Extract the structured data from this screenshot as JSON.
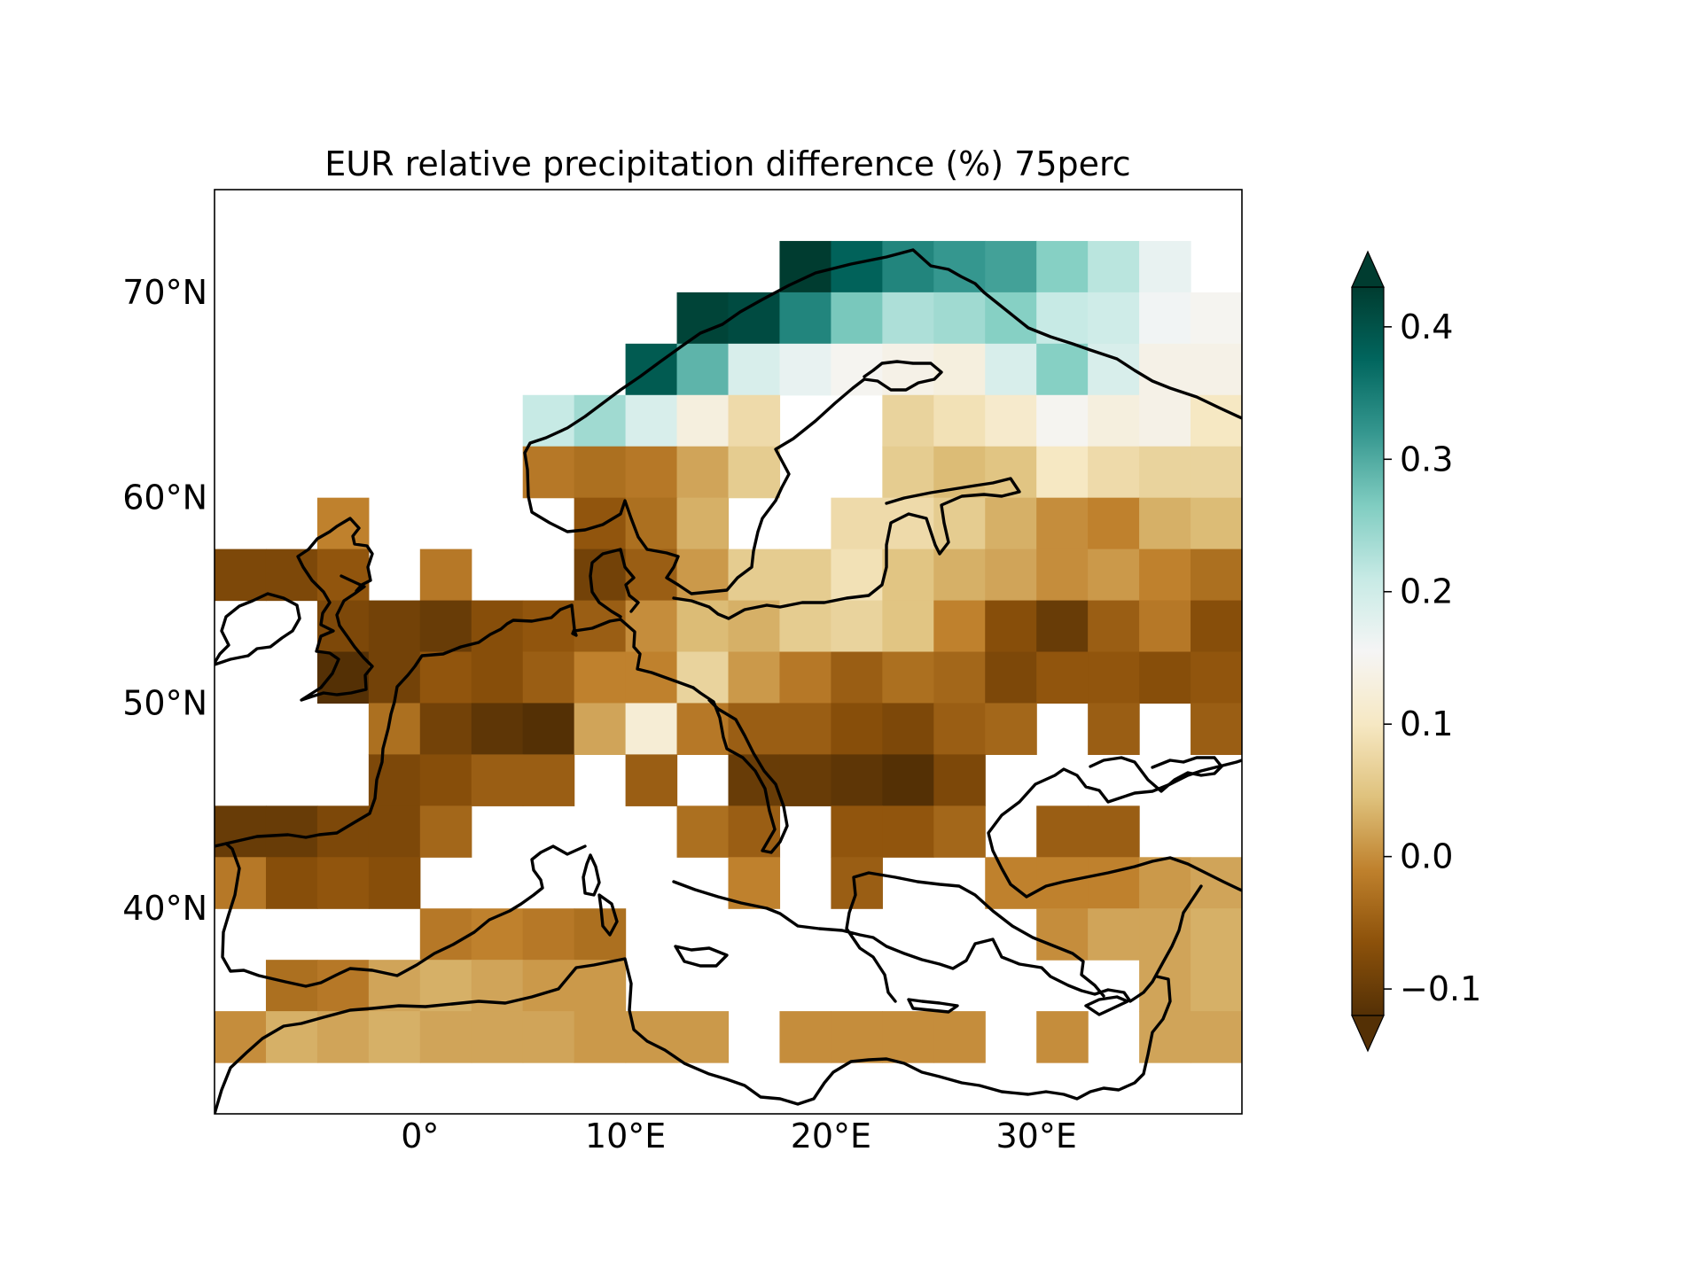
{
  "chart_data": {
    "type": "heatmap",
    "title": "EUR relative precipitation difference (%) 75perc",
    "xlim": [
      -10,
      40
    ],
    "ylim": [
      30,
      75
    ],
    "cell_size_deg": 2.5,
    "x_ticks": [
      {
        "value": 0,
        "label": "0°"
      },
      {
        "value": 10,
        "label": "10°E"
      },
      {
        "value": 20,
        "label": "20°E"
      },
      {
        "value": 30,
        "label": "30°E"
      }
    ],
    "y_ticks": [
      {
        "value": 40,
        "label": "40°N"
      },
      {
        "value": 50,
        "label": "50°N"
      },
      {
        "value": 60,
        "label": "60°N"
      },
      {
        "value": 70,
        "label": "70°N"
      }
    ],
    "colorbar": {
      "colormap": "BrBG",
      "vmin": -0.12,
      "vmax": 0.43,
      "extend": "both",
      "ticks": [
        {
          "value": -0.1,
          "label": "−0.1"
        },
        {
          "value": 0.0,
          "label": "0.0"
        },
        {
          "value": 0.1,
          "label": "0.1"
        },
        {
          "value": 0.2,
          "label": "0.2"
        },
        {
          "value": 0.3,
          "label": "0.3"
        },
        {
          "value": 0.4,
          "label": "0.4"
        }
      ]
    },
    "grid": false,
    "lon_edges_start": -10,
    "lat_edges_start": 72.5,
    "rows": [
      [
        null,
        null,
        null,
        null,
        null,
        null,
        null,
        null,
        null,
        null,
        null,
        0.43,
        0.38,
        0.34,
        0.32,
        0.31,
        0.26,
        0.22,
        0.17,
        null
      ],
      [
        null,
        null,
        null,
        null,
        null,
        null,
        null,
        null,
        null,
        0.42,
        0.41,
        0.34,
        0.27,
        0.23,
        0.24,
        0.26,
        0.21,
        0.2,
        0.16,
        0.15
      ],
      [
        null,
        null,
        null,
        null,
        null,
        null,
        null,
        null,
        0.39,
        0.29,
        0.19,
        0.17,
        0.15,
        0.14,
        0.13,
        0.19,
        0.26,
        0.19,
        0.14,
        0.14
      ],
      [
        null,
        null,
        null,
        null,
        null,
        null,
        0.21,
        0.24,
        0.19,
        0.13,
        0.08,
        null,
        null,
        0.07,
        0.09,
        0.11,
        0.15,
        0.13,
        0.14,
        0.1
      ],
      [
        null,
        null,
        null,
        null,
        null,
        null,
        -0.02,
        -0.03,
        -0.02,
        0.02,
        0.06,
        null,
        null,
        0.06,
        0.04,
        0.05,
        0.1,
        0.08,
        0.07,
        0.07
      ],
      [
        null,
        null,
        -0.01,
        null,
        null,
        null,
        null,
        -0.06,
        -0.03,
        0.03,
        null,
        null,
        0.08,
        0.08,
        0.06,
        0.03,
        0.0,
        -0.01,
        0.03,
        0.04
      ],
      [
        -0.08,
        -0.08,
        -0.06,
        null,
        -0.02,
        null,
        null,
        -0.09,
        -0.05,
        0.01,
        0.06,
        0.06,
        0.09,
        0.05,
        0.03,
        0.02,
        0.0,
        0.01,
        -0.01,
        -0.03
      ],
      [
        null,
        null,
        -0.08,
        -0.09,
        -0.1,
        -0.07,
        -0.06,
        -0.05,
        0.0,
        0.04,
        0.03,
        0.06,
        0.07,
        0.05,
        -0.01,
        -0.07,
        -0.1,
        -0.05,
        -0.02,
        -0.07
      ],
      [
        null,
        null,
        -0.12,
        -0.09,
        -0.06,
        -0.07,
        -0.05,
        -0.01,
        -0.01,
        0.07,
        0.01,
        -0.02,
        -0.05,
        -0.03,
        -0.04,
        -0.08,
        -0.06,
        -0.06,
        -0.07,
        -0.06
      ],
      [
        null,
        null,
        null,
        -0.03,
        -0.09,
        -0.11,
        -0.12,
        0.02,
        0.12,
        -0.02,
        -0.05,
        -0.05,
        -0.07,
        -0.08,
        -0.05,
        -0.04,
        null,
        -0.05,
        null,
        -0.05
      ],
      [
        null,
        null,
        null,
        -0.08,
        -0.07,
        -0.05,
        -0.05,
        null,
        -0.05,
        null,
        -0.1,
        -0.1,
        -0.11,
        -0.12,
        -0.08,
        null,
        null,
        null,
        null,
        null
      ],
      [
        -0.1,
        -0.1,
        -0.08,
        -0.08,
        -0.04,
        null,
        null,
        null,
        null,
        -0.03,
        -0.05,
        null,
        -0.06,
        -0.06,
        -0.04,
        null,
        -0.05,
        -0.05,
        null,
        null
      ],
      [
        -0.02,
        -0.07,
        -0.06,
        -0.07,
        null,
        null,
        null,
        null,
        null,
        null,
        -0.01,
        null,
        -0.05,
        null,
        null,
        -0.01,
        -0.01,
        -0.01,
        0.01,
        0.02
      ],
      [
        null,
        null,
        null,
        null,
        -0.02,
        -0.01,
        -0.02,
        -0.03,
        null,
        null,
        null,
        null,
        null,
        null,
        null,
        null,
        0.0,
        0.02,
        0.02,
        0.03
      ],
      [
        null,
        -0.03,
        -0.02,
        0.02,
        0.03,
        0.02,
        0.01,
        0.01,
        null,
        null,
        null,
        null,
        null,
        null,
        null,
        null,
        null,
        null,
        0.02,
        0.03
      ],
      [
        0.0,
        0.03,
        0.02,
        0.03,
        0.02,
        0.02,
        0.02,
        0.01,
        0.01,
        0.01,
        null,
        0.0,
        0.0,
        0.0,
        0.0,
        null,
        0.0,
        null,
        0.02,
        0.02
      ]
    ]
  }
}
